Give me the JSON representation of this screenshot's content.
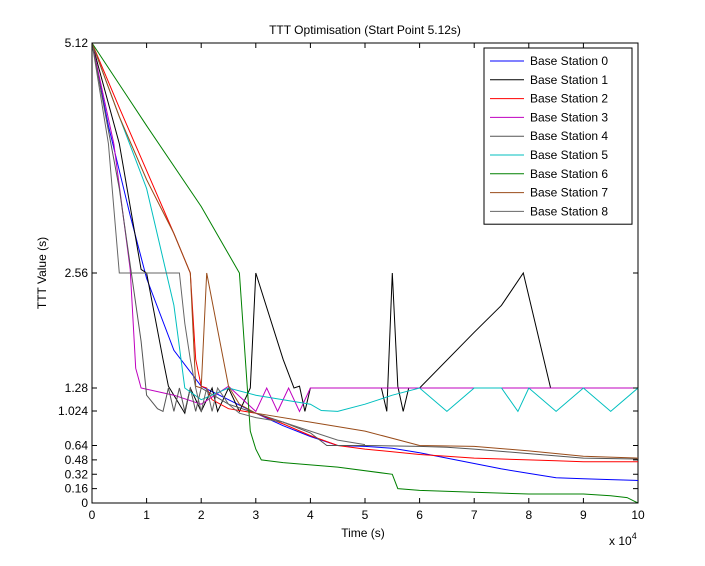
{
  "chart_data": {
    "type": "line",
    "title": "TTT Optimisation (Start Point 5.12s)",
    "xlabel": "Time (s)",
    "ylabel": "TTT Value (s)",
    "x_exponent_label": "x 10",
    "x_exponent_power": "4",
    "xlim": [
      0,
      100000
    ],
    "ylim": [
      0,
      5.12
    ],
    "xticks": [
      0,
      10000,
      20000,
      30000,
      40000,
      50000,
      60000,
      70000,
      80000,
      90000,
      100000
    ],
    "xtick_labels": [
      "0",
      "1",
      "2",
      "3",
      "4",
      "5",
      "6",
      "7",
      "8",
      "9",
      "10"
    ],
    "yticks": [
      0,
      0.16,
      0.32,
      0.48,
      0.64,
      1.024,
      1.28,
      2.56,
      5.12
    ],
    "ytick_labels": [
      "0",
      "0.16",
      "0.32",
      "0.48",
      "0.64",
      "1.024",
      "1.28",
      "2.56",
      "5.12"
    ],
    "legend_position": "top-right",
    "grid": false,
    "series": [
      {
        "name": "Base Station 0",
        "color": "#0000ff",
        "x": [
          0,
          3000,
          7000,
          10000,
          15000,
          20000,
          25000,
          30000,
          35000,
          40000,
          45000,
          50000,
          55000,
          60000,
          65000,
          70000,
          75000,
          80000,
          85000,
          90000,
          95000,
          100000
        ],
        "y": [
          5.12,
          4.2,
          3.2,
          2.5,
          1.7,
          1.3,
          1.15,
          1.0,
          0.86,
          0.74,
          0.64,
          0.63,
          0.61,
          0.56,
          0.5,
          0.44,
          0.38,
          0.33,
          0.28,
          0.27,
          0.26,
          0.25
        ]
      },
      {
        "name": "Base Station 1",
        "color": "#000000",
        "x": [
          0,
          5000,
          9000,
          10000,
          13000,
          14000,
          17000,
          18000,
          20000,
          22000,
          23000,
          25000,
          27000,
          29000,
          30000,
          35000,
          37000,
          38000,
          39000,
          40000,
          50000,
          53000,
          54000,
          55000,
          56000,
          57000,
          58000,
          59000,
          60000,
          70000,
          75000,
          79000,
          84000,
          88000,
          92000,
          96000,
          100000
        ],
        "y": [
          5.12,
          4.0,
          2.6,
          2.56,
          1.6,
          1.3,
          1.0,
          1.28,
          1.02,
          1.28,
          1.02,
          1.28,
          1.02,
          1.28,
          2.56,
          1.6,
          1.28,
          1.3,
          1.02,
          1.28,
          1.28,
          1.28,
          1.02,
          2.56,
          1.3,
          1.02,
          1.28,
          1.28,
          1.28,
          1.9,
          2.2,
          2.56,
          1.28,
          1.28,
          1.28,
          1.28,
          1.28
        ]
      },
      {
        "name": "Base Station 2",
        "color": "#ff0000",
        "x": [
          0,
          5000,
          10000,
          15000,
          18000,
          19000,
          20000,
          21000,
          22000,
          25000,
          30000,
          35000,
          40000,
          45000,
          50000,
          55000,
          60000,
          65000,
          70000,
          75000,
          80000,
          85000,
          90000,
          95000,
          100000
        ],
        "y": [
          5.12,
          4.4,
          3.7,
          3.0,
          2.56,
          1.6,
          1.3,
          1.28,
          1.15,
          1.05,
          1.0,
          0.88,
          0.75,
          0.64,
          0.6,
          0.57,
          0.54,
          0.52,
          0.5,
          0.49,
          0.48,
          0.47,
          0.46,
          0.46,
          0.46
        ]
      },
      {
        "name": "Base Station 3",
        "color": "#bf00bf",
        "x": [
          0,
          4000,
          7000,
          8000,
          9000,
          15000,
          20000,
          25000,
          30000,
          32000,
          34000,
          36000,
          38000,
          40000,
          50000,
          60000,
          70000,
          80000,
          90000,
          100000
        ],
        "y": [
          5.12,
          4.0,
          2.6,
          1.5,
          1.28,
          1.2,
          1.1,
          1.3,
          1.02,
          1.28,
          1.02,
          1.28,
          1.02,
          1.28,
          1.28,
          1.28,
          1.28,
          1.28,
          1.28,
          1.28
        ]
      },
      {
        "name": "Base Station 4",
        "color": "#555555",
        "x": [
          0,
          5000,
          9000,
          10000,
          12000,
          13000,
          14000,
          15000,
          16000,
          17000,
          18000,
          19000,
          20000,
          25000,
          30000,
          35000,
          40000,
          43000,
          50000,
          60000,
          65000,
          70000,
          80000,
          90000,
          100000
        ],
        "y": [
          5.12,
          3.5,
          1.8,
          1.2,
          1.05,
          1.02,
          1.28,
          1.02,
          1.28,
          1.02,
          1.28,
          1.02,
          1.28,
          1.1,
          1.0,
          0.9,
          0.78,
          0.64,
          0.64,
          0.63,
          0.62,
          0.6,
          0.55,
          0.5,
          0.49
        ]
      },
      {
        "name": "Base Station 5",
        "color": "#00bfbf",
        "x": [
          0,
          5000,
          10000,
          15000,
          17000,
          20000,
          25000,
          30000,
          35000,
          40000,
          42000,
          45000,
          50000,
          55000,
          60000,
          65000,
          70000,
          75000,
          78000,
          80000,
          85000,
          90000,
          95000,
          100000
        ],
        "y": [
          5.12,
          4.3,
          3.5,
          2.2,
          1.28,
          1.15,
          1.28,
          1.2,
          1.15,
          1.1,
          1.03,
          1.02,
          1.1,
          1.2,
          1.28,
          1.02,
          1.28,
          1.28,
          1.02,
          1.28,
          1.02,
          1.28,
          1.02,
          1.28
        ]
      },
      {
        "name": "Base Station 6",
        "color": "#008000",
        "x": [
          0,
          10000,
          20000,
          27000,
          29000,
          30000,
          31000,
          35000,
          45000,
          55000,
          56000,
          60000,
          70000,
          80000,
          90000,
          95000,
          98000,
          100000
        ],
        "y": [
          5.12,
          4.2,
          3.3,
          2.56,
          0.8,
          0.6,
          0.48,
          0.45,
          0.4,
          0.32,
          0.16,
          0.14,
          0.12,
          0.1,
          0.1,
          0.08,
          0.06,
          0.0
        ]
      },
      {
        "name": "Base Station 7",
        "color": "#994c1a",
        "x": [
          0,
          5000,
          10000,
          15000,
          18000,
          19000,
          20000,
          21000,
          25000,
          27000,
          30000,
          40000,
          50000,
          60000,
          70000,
          80000,
          90000,
          100000
        ],
        "y": [
          5.12,
          4.3,
          3.6,
          3.0,
          2.56,
          1.3,
          1.28,
          2.56,
          1.3,
          1.1,
          1.0,
          0.9,
          0.8,
          0.64,
          0.63,
          0.58,
          0.52,
          0.5
        ]
      },
      {
        "name": "Base Station 8",
        "color": "#666666",
        "x": [
          0,
          3000,
          5000,
          10000,
          11000,
          12000,
          13000,
          14000,
          15000,
          16000,
          17000,
          18000,
          19000,
          20000,
          21000,
          22000,
          23000,
          25000,
          27000,
          30000,
          35000,
          40000,
          45000,
          50000
        ],
        "y": [
          5.12,
          4.0,
          2.56,
          2.56,
          2.56,
          2.56,
          2.56,
          2.56,
          2.56,
          2.56,
          2.0,
          1.6,
          1.28,
          1.02,
          1.28,
          1.02,
          1.28,
          1.1,
          1.0,
          0.95,
          0.9,
          0.8,
          0.7,
          0.65
        ]
      }
    ]
  }
}
